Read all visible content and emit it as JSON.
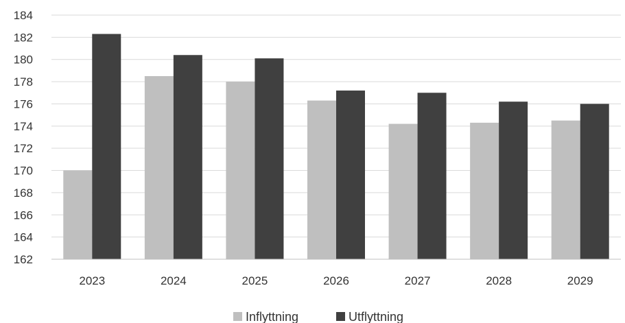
{
  "chart_data": {
    "type": "bar",
    "categories": [
      "2023",
      "2024",
      "2025",
      "2026",
      "2027",
      "2028",
      "2029"
    ],
    "series": [
      {
        "name": "Inflyttning",
        "values": [
          170.0,
          178.5,
          178.0,
          176.3,
          174.2,
          174.3,
          174.5
        ]
      },
      {
        "name": "Utflyttning",
        "values": [
          182.3,
          180.4,
          180.1,
          177.2,
          177.0,
          176.2,
          176.0
        ]
      }
    ],
    "colors": [
      "#bfbfbf",
      "#404040"
    ],
    "ylim": [
      162,
      184
    ],
    "yticks": [
      "162",
      "164",
      "166",
      "168",
      "170",
      "172",
      "174",
      "176",
      "178",
      "180",
      "182",
      "184"
    ],
    "grid": true,
    "legend_position": "bottom"
  }
}
